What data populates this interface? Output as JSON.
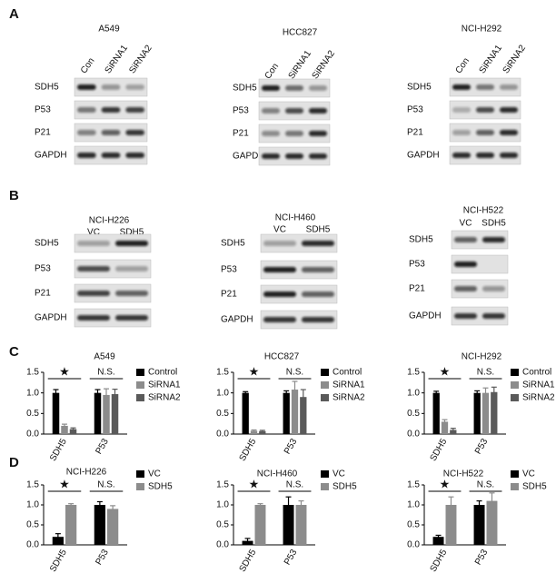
{
  "panel_labels": [
    "A",
    "B",
    "C",
    "D"
  ],
  "blots": [
    {
      "title": "A549",
      "lanes": [
        "Con",
        "SiRNA1",
        "SiRNA2"
      ],
      "rows": [
        "SDH5",
        "P53",
        "P21",
        "GAPDH"
      ]
    },
    {
      "title": "HCC827",
      "lanes": [
        "Con",
        "SiRNA1",
        "SiRNA2"
      ],
      "rows": [
        "SDH5",
        "P53",
        "P21",
        "GAPDH"
      ]
    },
    {
      "title": "NCI-H292",
      "lanes": [
        "Con",
        "SiRNA1",
        "SiRNA2"
      ],
      "rows": [
        "SDH5",
        "P53",
        "P21",
        "GAPDH"
      ]
    },
    {
      "title": "NCI-H226",
      "lanes": [
        "VC",
        "SDH5"
      ],
      "rows": [
        "SDH5",
        "P53",
        "P21",
        "GAPDH"
      ]
    },
    {
      "title": "NCI-H460",
      "lanes": [
        "VC",
        "SDH5"
      ],
      "rows": [
        "SDH5",
        "P53",
        "P21",
        "GAPDH"
      ]
    },
    {
      "title": "NCI-H522",
      "lanes": [
        "VC",
        "SDH5"
      ],
      "rows": [
        "SDH5",
        "P53",
        "P21",
        "GAPDH"
      ]
    }
  ],
  "chart_data": [
    {
      "type": "bar",
      "title": "A549",
      "categories": [
        "SDH5",
        "P53"
      ],
      "series": [
        {
          "name": "Control",
          "color": "#000000",
          "values": [
            1.0,
            1.0
          ],
          "errors": [
            0.08,
            0.08
          ]
        },
        {
          "name": "SiRNA1",
          "color": "#8c8c8c",
          "values": [
            0.2,
            0.95
          ],
          "errors": [
            0.04,
            0.15
          ]
        },
        {
          "name": "SiRNA2",
          "color": "#5a5a5a",
          "values": [
            0.12,
            0.97
          ],
          "errors": [
            0.03,
            0.12
          ]
        }
      ],
      "ylim": [
        0,
        1.5
      ],
      "yticks": [
        {
          "value": 0,
          "label": "0.0"
        },
        0.5,
        {
          "value": 1,
          "label": "1.0"
        },
        1.5
      ],
      "annotations": [
        "★",
        "N.S."
      ]
    },
    {
      "type": "bar",
      "title": "HCC827",
      "categories": [
        "SDH5",
        "P53"
      ],
      "series": [
        {
          "name": "Control",
          "color": "#000000",
          "values": [
            1.0,
            1.0
          ],
          "errors": [
            0.03,
            0.05
          ]
        },
        {
          "name": "SiRNA1",
          "color": "#8c8c8c",
          "values": [
            0.08,
            1.08
          ],
          "errors": [
            0.02,
            0.2
          ]
        },
        {
          "name": "SiRNA2",
          "color": "#5a5a5a",
          "values": [
            0.07,
            0.9
          ],
          "errors": [
            0.02,
            0.18
          ]
        }
      ],
      "ylim": [
        0,
        1.5
      ],
      "yticks": [
        {
          "value": 0,
          "label": "0.0"
        },
        0.5,
        {
          "value": 1,
          "label": "1.0"
        },
        1.5
      ],
      "annotations": [
        "★",
        "N.S."
      ]
    },
    {
      "type": "bar",
      "title": "NCI-H292",
      "categories": [
        "SDH5",
        "P53"
      ],
      "series": [
        {
          "name": "Control",
          "color": "#000000",
          "values": [
            1.0,
            1.0
          ],
          "errors": [
            0.04,
            0.05
          ]
        },
        {
          "name": "SiRNA1",
          "color": "#8c8c8c",
          "values": [
            0.3,
            1.0
          ],
          "errors": [
            0.05,
            0.12
          ]
        },
        {
          "name": "SiRNA2",
          "color": "#5a5a5a",
          "values": [
            0.1,
            1.02
          ],
          "errors": [
            0.04,
            0.12
          ]
        }
      ],
      "ylim": [
        0,
        1.5
      ],
      "yticks": [
        {
          "value": 0,
          "label": "0.0"
        },
        0.5,
        {
          "value": 1,
          "label": "1.0"
        },
        1.5
      ],
      "annotations": [
        "★",
        "N.S."
      ]
    },
    {
      "type": "bar",
      "title": "NCI-H226",
      "categories": [
        "SDH5",
        "P53"
      ],
      "series": [
        {
          "name": "VC",
          "color": "#000000",
          "values": [
            0.2,
            1.0
          ],
          "errors": [
            0.08,
            0.08
          ]
        },
        {
          "name": "SDH5",
          "color": "#8c8c8c",
          "values": [
            1.0,
            0.9
          ],
          "errors": [
            0.03,
            0.08
          ]
        }
      ],
      "ylim": [
        0,
        1.5
      ],
      "yticks": [
        {
          "value": 0,
          "label": "0.0"
        },
        0.5,
        {
          "value": 1,
          "label": "1.0"
        },
        1.5
      ],
      "annotations": [
        "★",
        "N.S."
      ]
    },
    {
      "type": "bar",
      "title": "NCI-H460",
      "categories": [
        "SDH5",
        "P53"
      ],
      "series": [
        {
          "name": "VC",
          "color": "#000000",
          "values": [
            0.1,
            1.0
          ],
          "errors": [
            0.06,
            0.2
          ]
        },
        {
          "name": "SDH5",
          "color": "#8c8c8c",
          "values": [
            1.0,
            1.0
          ],
          "errors": [
            0.03,
            0.1
          ]
        }
      ],
      "ylim": [
        0,
        1.5
      ],
      "yticks": [
        {
          "value": 0,
          "label": "0.0"
        },
        0.5,
        {
          "value": 1,
          "label": "1.0"
        },
        1.5
      ],
      "annotations": [
        "★",
        "N.S."
      ]
    },
    {
      "type": "bar",
      "title": "NCI-H522",
      "categories": [
        "SDH5",
        "P53"
      ],
      "series": [
        {
          "name": "VC",
          "color": "#000000",
          "values": [
            0.2,
            1.0
          ],
          "errors": [
            0.04,
            0.1
          ]
        },
        {
          "name": "SDH5",
          "color": "#8c8c8c",
          "values": [
            1.0,
            1.1
          ],
          "errors": [
            0.2,
            0.2
          ]
        }
      ],
      "ylim": [
        0,
        1.5
      ],
      "yticks": [
        {
          "value": 0,
          "label": "0.0"
        },
        0.5,
        {
          "value": 1,
          "label": "1.0"
        },
        1.5
      ],
      "annotations": [
        "★",
        "N.S."
      ]
    }
  ]
}
